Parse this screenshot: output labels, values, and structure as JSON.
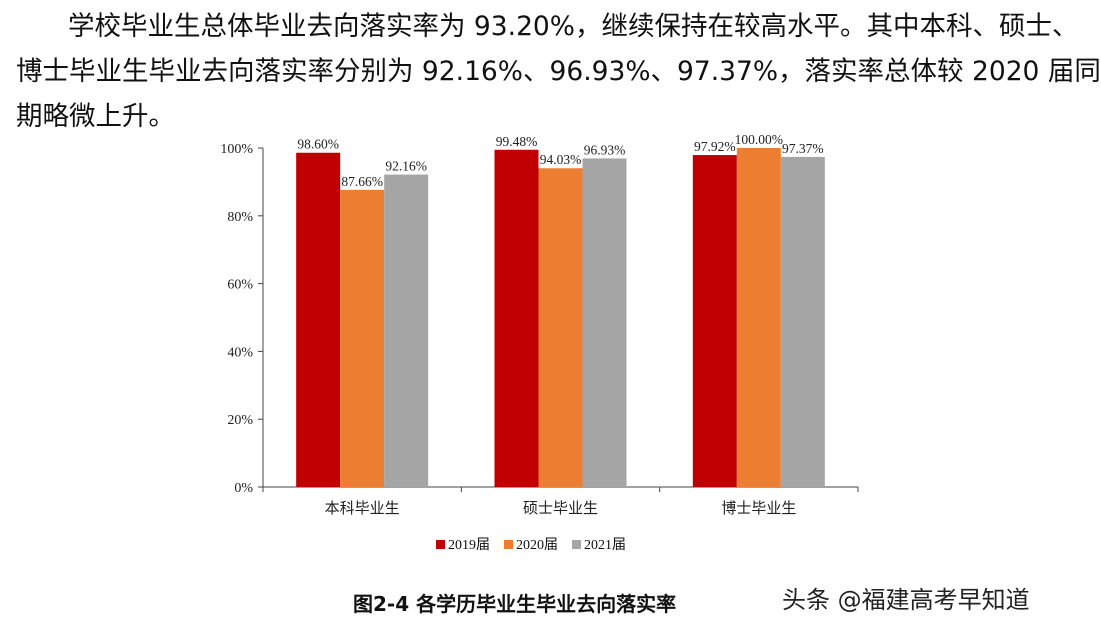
{
  "paragraph": {
    "line1": "学校毕业生总体毕业去向落实率为 93.20%，继续保持在较高水平。其中本科、硕士、",
    "line2": "博士毕业生毕业去向落实率分别为 92.16%、96.93%、97.37%，落实率总体较 2020 届同",
    "line3": "期略微上升。"
  },
  "chart_data": {
    "type": "bar",
    "categories": [
      "本科毕业生",
      "硕士毕业生",
      "博士毕业生"
    ],
    "series": [
      {
        "name": "2019届",
        "values": [
          98.6,
          99.48,
          97.92
        ],
        "labels": [
          "98.60%",
          "99.48%",
          "97.92%"
        ],
        "color": "#C00000"
      },
      {
        "name": "2020届",
        "values": [
          87.66,
          94.03,
          100.0
        ],
        "labels": [
          "87.66%",
          "94.03%",
          "100.00%"
        ],
        "color": "#ED7D31"
      },
      {
        "name": "2021届",
        "values": [
          92.16,
          96.93,
          97.37
        ],
        "labels": [
          "92.16%",
          "96.93%",
          "97.37%"
        ],
        "color": "#A5A5A5"
      }
    ],
    "ylim": [
      0,
      100
    ],
    "yticks": [
      0,
      20,
      40,
      60,
      80,
      100
    ],
    "ytick_labels": [
      "0%",
      "20%",
      "40%",
      "60%",
      "80%",
      "100%"
    ],
    "grid": false,
    "legend_position": "bottom"
  },
  "caption": "图2-4 各学历毕业生毕业去向落实率",
  "watermark": "头条 @福建高考早知道"
}
